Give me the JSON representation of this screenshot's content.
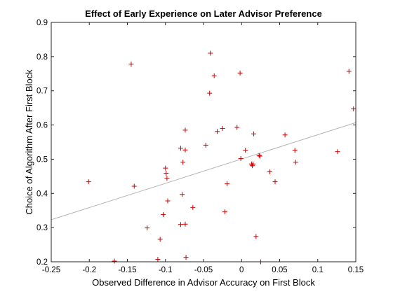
{
  "chart_data": {
    "type": "scatter",
    "title": "Effect of Early Experience on Later Advisor Preference",
    "xlabel": "Observed Difference in Advisor Accuracy on First Block",
    "ylabel": "Choice of Algorithm After First Block",
    "xlim": [
      -0.25,
      0.15
    ],
    "ylim": [
      0.2,
      0.9
    ],
    "xticks": [
      -0.25,
      -0.2,
      -0.15,
      -0.1,
      -0.05,
      0,
      0.05,
      0.1,
      0.15
    ],
    "xtick_labels": [
      "-0.25",
      "-0.2",
      "-0.15",
      "-0.1",
      "-0.05",
      "0",
      "0.05",
      "0.1",
      "0.15"
    ],
    "yticks": [
      0.2,
      0.3,
      0.4,
      0.5,
      0.6,
      0.7,
      0.8,
      0.9
    ],
    "ytick_labels": [
      "0.2",
      "0.3",
      "0.4",
      "0.5",
      "0.6",
      "0.7",
      "0.8",
      "0.9"
    ],
    "grid": false,
    "box": true,
    "marker": "+",
    "marker_color": "#cc0000",
    "trend_color": "#b5b5b5",
    "axis_color": "#262626",
    "points": [
      {
        "x": -0.201,
        "y": 0.434
      },
      {
        "x": -0.167,
        "y": 0.202
      },
      {
        "x": -0.145,
        "y": 0.778
      },
      {
        "x": -0.141,
        "y": 0.421
      },
      {
        "x": -0.124,
        "y": 0.299
      },
      {
        "x": -0.11,
        "y": 0.207
      },
      {
        "x": -0.107,
        "y": 0.266
      },
      {
        "x": -0.103,
        "y": 0.338
      },
      {
        "x": -0.1,
        "y": 0.474
      },
      {
        "x": -0.099,
        "y": 0.459
      },
      {
        "x": -0.098,
        "y": 0.444
      },
      {
        "x": -0.097,
        "y": 0.378
      },
      {
        "x": -0.08,
        "y": 0.532
      },
      {
        "x": -0.08,
        "y": 0.309
      },
      {
        "x": -0.078,
        "y": 0.397
      },
      {
        "x": -0.077,
        "y": 0.491
      },
      {
        "x": -0.074,
        "y": 0.585
      },
      {
        "x": -0.074,
        "y": 0.527
      },
      {
        "x": -0.074,
        "y": 0.31
      },
      {
        "x": -0.073,
        "y": 0.213
      },
      {
        "x": -0.064,
        "y": 0.359
      },
      {
        "x": -0.047,
        "y": 0.541
      },
      {
        "x": -0.042,
        "y": 0.693
      },
      {
        "x": -0.041,
        "y": 0.81
      },
      {
        "x": -0.036,
        "y": 0.744
      },
      {
        "x": -0.032,
        "y": 0.581
      },
      {
        "x": -0.025,
        "y": 0.59
      },
      {
        "x": -0.022,
        "y": 0.346
      },
      {
        "x": -0.019,
        "y": 0.428
      },
      {
        "x": -0.006,
        "y": 0.593
      },
      {
        "x": -0.002,
        "y": 0.752
      },
      {
        "x": -0.001,
        "y": 0.502
      },
      {
        "x": 0.005,
        "y": 0.526
      },
      {
        "x": 0.013,
        "y": 0.486
      },
      {
        "x": 0.014,
        "y": 0.481
      },
      {
        "x": 0.015,
        "y": 0.486
      },
      {
        "x": 0.016,
        "y": 0.574
      },
      {
        "x": 0.019,
        "y": 0.274
      },
      {
        "x": 0.023,
        "y": 0.511
      },
      {
        "x": 0.024,
        "y": 0.509
      },
      {
        "x": 0.025,
        "y": 0.2
      },
      {
        "x": 0.037,
        "y": 0.463
      },
      {
        "x": 0.044,
        "y": 0.434
      },
      {
        "x": 0.057,
        "y": 0.571
      },
      {
        "x": 0.07,
        "y": 0.526
      },
      {
        "x": 0.071,
        "y": 0.491
      },
      {
        "x": 0.126,
        "y": 0.522
      },
      {
        "x": 0.141,
        "y": 0.757
      },
      {
        "x": 0.147,
        "y": 0.647
      }
    ],
    "trend_line": {
      "x": [
        -0.25,
        0.15
      ],
      "y": [
        0.323,
        0.607
      ]
    }
  }
}
